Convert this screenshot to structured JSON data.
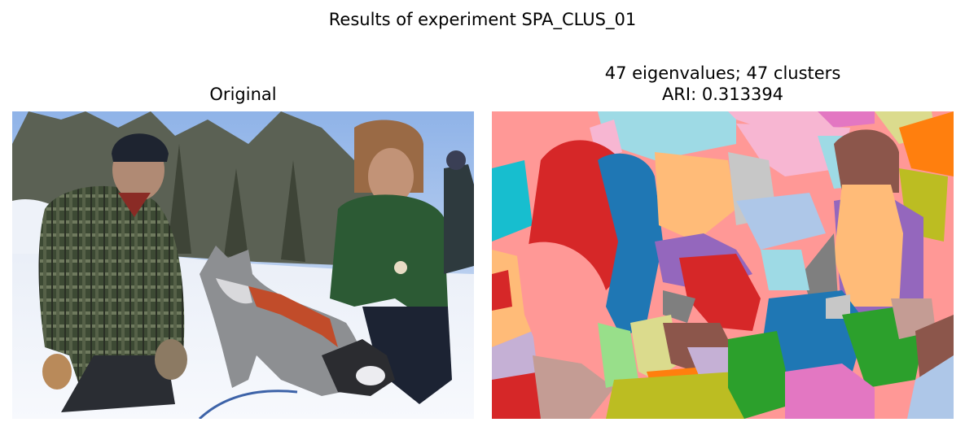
{
  "figure": {
    "suptitle": "Results of experiment SPA_CLUS_01"
  },
  "panels": [
    {
      "title_lines": [
        "Original"
      ]
    },
    {
      "title_lines": [
        "47 eigenvalues; 47 clusters",
        "ARI: 0.313394"
      ]
    }
  ],
  "colors": {
    "tab_red": "#d62728",
    "tab_blue": "#1f77b4",
    "tab_orange": "#ff7f0e",
    "tab_green": "#2ca02c",
    "tab_purple": "#9467bd",
    "tab_brown": "#8c564b",
    "tab_pink": "#e377c2",
    "tab_gray": "#7f7f7f",
    "tab_olive": "#bcbd22",
    "tab_cyan": "#17becf",
    "light_red": "#ff9896",
    "light_blue": "#aec7e8",
    "light_orange": "#ffbb78",
    "light_green": "#98df8a",
    "light_purple": "#c5b0d5",
    "light_brown": "#c49c94",
    "light_pink": "#f7b6d2",
    "light_gray": "#c7c7c7",
    "light_olive": "#dbdb8d",
    "light_cyan": "#9edae5"
  }
}
